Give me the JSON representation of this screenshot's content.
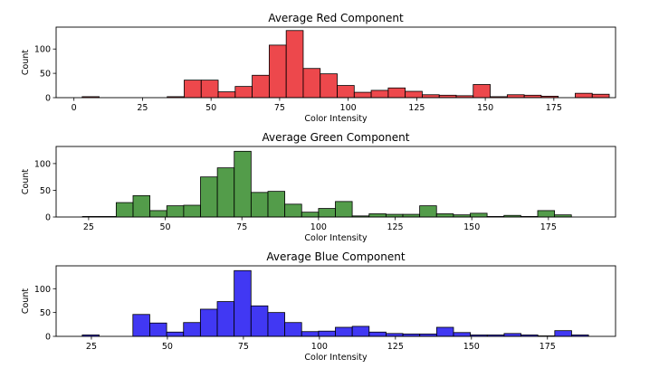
{
  "chart_data": [
    {
      "type": "bar",
      "title": "Average Red Component",
      "xlabel": "Color Intensity",
      "ylabel": "Count",
      "color": "#e8141a",
      "xlim": [
        -6.5,
        197.5
      ],
      "ylim": [
        0,
        145
      ],
      "xticks": [
        0,
        25,
        50,
        75,
        100,
        125,
        150,
        175
      ],
      "yticks": [
        0,
        50,
        100
      ],
      "bin_start": 3,
      "bin_width": 6.2,
      "values": [
        2,
        0,
        0,
        0,
        0,
        2,
        36,
        36,
        12,
        23,
        46,
        108,
        138,
        60,
        49,
        25,
        11,
        15,
        20,
        13,
        6,
        5,
        4,
        27,
        2,
        6,
        5,
        3,
        0,
        9,
        7
      ]
    },
    {
      "type": "bar",
      "title": "Average Green Component",
      "xlabel": "Color Intensity",
      "ylabel": "Count",
      "color": "#238017",
      "xlim": [
        14.4,
        196.9
      ],
      "ylim": [
        0,
        132
      ],
      "xticks": [
        25,
        50,
        75,
        100,
        125,
        150,
        175
      ],
      "yticks": [
        0,
        50,
        100
      ],
      "bin_start": 23,
      "bin_width": 5.5,
      "values": [
        1,
        1,
        27,
        40,
        12,
        21,
        22,
        75,
        92,
        123,
        46,
        48,
        24,
        9,
        16,
        29,
        2,
        6,
        5,
        5,
        21,
        6,
        4,
        7,
        1,
        3,
        1,
        12,
        4
      ]
    },
    {
      "type": "bar",
      "title": "Average Blue Component",
      "xlabel": "Color Intensity",
      "ylabel": "Count",
      "color": "#0c00f0",
      "xlim": [
        13.4,
        197.4
      ],
      "ylim": [
        0,
        148
      ],
      "xticks": [
        25,
        50,
        75,
        100,
        125,
        150,
        175
      ],
      "yticks": [
        0,
        50,
        100
      ],
      "bin_start": 22,
      "bin_width": 5.55,
      "values": [
        3,
        0,
        0,
        46,
        28,
        9,
        29,
        57,
        73,
        138,
        64,
        50,
        29,
        10,
        11,
        19,
        21,
        9,
        6,
        5,
        5,
        19,
        8,
        3,
        3,
        6,
        3,
        1,
        12,
        3
      ]
    }
  ]
}
